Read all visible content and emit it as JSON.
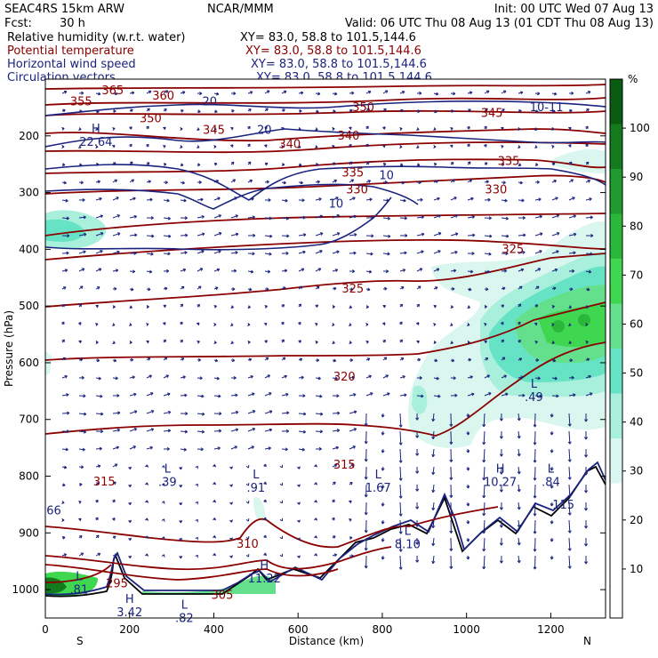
{
  "header": {
    "model": "SEAC4RS 15km ARW",
    "org": "NCAR/MMM",
    "init": "Init: 00 UTC Wed 07 Aug 13",
    "fcst_label": "Fcst:",
    "fcst_value": "30 h",
    "valid": "Valid: 06 UTC Thu 08 Aug 13 (01 CDT Thu 08 Aug 13)"
  },
  "fields": [
    {
      "name": "Relative humidity (w.r.t. water)",
      "xy": "XY=  83.0, 58.8 to 101.5,144.6",
      "color": "#000000"
    },
    {
      "name": "Potential temperature",
      "xy": "XY=  83.0, 58.8 to 101.5,144.6",
      "color": "#8b0000"
    },
    {
      "name": "Horizontal wind speed",
      "xy": "XY=  83.0, 58.8 to 101.5,144.6",
      "color": "#1a237e"
    },
    {
      "name": "Circulation vectors",
      "xy": "XY=  83.0, 58.8 to 101.5,144.6",
      "color": "#1a237e"
    }
  ],
  "chart_data": {
    "type": "heatmap",
    "xlabel": "Distance (km)",
    "ylabel": "Pressure (hPa)",
    "xlim": [
      0,
      1330
    ],
    "ylim": [
      1050,
      100
    ],
    "x_ticks": [
      0,
      200,
      400,
      600,
      800,
      1000,
      1200
    ],
    "y_ticks": [
      200,
      300,
      400,
      500,
      600,
      700,
      800,
      900,
      1000
    ],
    "x_end_labels": {
      "left": "S",
      "right": "N"
    },
    "colorbar": {
      "unit": "%",
      "ticks": [
        10,
        20,
        30,
        40,
        50,
        60,
        70,
        80,
        90,
        100
      ],
      "colors": [
        "#ffffff",
        "#ffffff",
        "#ffffff",
        "#d9f7ef",
        "#a8efdc",
        "#66e3c4",
        "#64df8c",
        "#3fd650",
        "#2bb83a",
        "#1f9a2c",
        "#137a1e",
        "#0a5c12"
      ]
    },
    "theta_labels": [
      {
        "text": "365",
        "x": 160,
        "p": 120
      },
      {
        "text": "360",
        "x": 280,
        "p": 130
      },
      {
        "text": "355",
        "x": 85,
        "p": 140
      },
      {
        "text": "350",
        "x": 250,
        "p": 170
      },
      {
        "text": "350",
        "x": 755,
        "p": 150
      },
      {
        "text": "345",
        "x": 400,
        "p": 190
      },
      {
        "text": "345",
        "x": 1060,
        "p": 160
      },
      {
        "text": "340",
        "x": 580,
        "p": 215
      },
      {
        "text": "340",
        "x": 720,
        "p": 200
      },
      {
        "text": "335",
        "x": 730,
        "p": 265
      },
      {
        "text": "335",
        "x": 1100,
        "p": 245
      },
      {
        "text": "330",
        "x": 740,
        "p": 295
      },
      {
        "text": "330",
        "x": 1070,
        "p": 295
      },
      {
        "text": "325",
        "x": 730,
        "p": 470
      },
      {
        "text": "325",
        "x": 1110,
        "p": 400
      },
      {
        "text": "320",
        "x": 710,
        "p": 625
      },
      {
        "text": "315",
        "x": 140,
        "p": 810
      },
      {
        "text": "315",
        "x": 710,
        "p": 780
      },
      {
        "text": "310",
        "x": 480,
        "p": 920
      },
      {
        "text": "305",
        "x": 420,
        "p": 1010
      },
      {
        "text": "295",
        "x": 170,
        "p": 990
      }
    ],
    "wind_labels": [
      {
        "text": "20",
        "x": 390,
        "p": 140
      },
      {
        "text": "20",
        "x": 520,
        "p": 190
      },
      {
        "text": "10",
        "x": 810,
        "p": 270
      },
      {
        "text": "10",
        "x": 690,
        "p": 320
      },
      {
        "text": "10-11",
        "x": 1190,
        "p": 150
      }
    ],
    "extrema": [
      {
        "type": "H",
        "value": "22.64",
        "x": 120,
        "p": 200
      },
      {
        "type": "L",
        "value": ".39",
        "x": 290,
        "p": 800
      },
      {
        "type": "L",
        "value": ".91",
        "x": 500,
        "p": 810
      },
      {
        "type": "L",
        "value": "1.67",
        "x": 790,
        "p": 810
      },
      {
        "type": "L",
        "value": ".49",
        "x": 1160,
        "p": 650
      },
      {
        "type": "H",
        "value": "10.27",
        "x": 1080,
        "p": 800
      },
      {
        "type": "L",
        "value": ".84",
        "x": 1200,
        "p": 800
      },
      {
        "type": "H",
        "value": "11.22",
        "x": 520,
        "p": 970
      },
      {
        "type": "L",
        "value": ".81",
        "x": 80,
        "p": 990
      },
      {
        "type": "H",
        "value": "3.42",
        "x": 200,
        "p": 1030
      },
      {
        "type": "L",
        "value": ".82",
        "x": 330,
        "p": 1040
      },
      {
        "type": "L",
        "value": "8.10",
        "x": 860,
        "p": 910
      },
      {
        "type": "",
        "value": "66",
        "x": 20,
        "p": 850
      },
      {
        "type": "",
        "value": "115",
        "x": 1230,
        "p": 840
      }
    ]
  }
}
